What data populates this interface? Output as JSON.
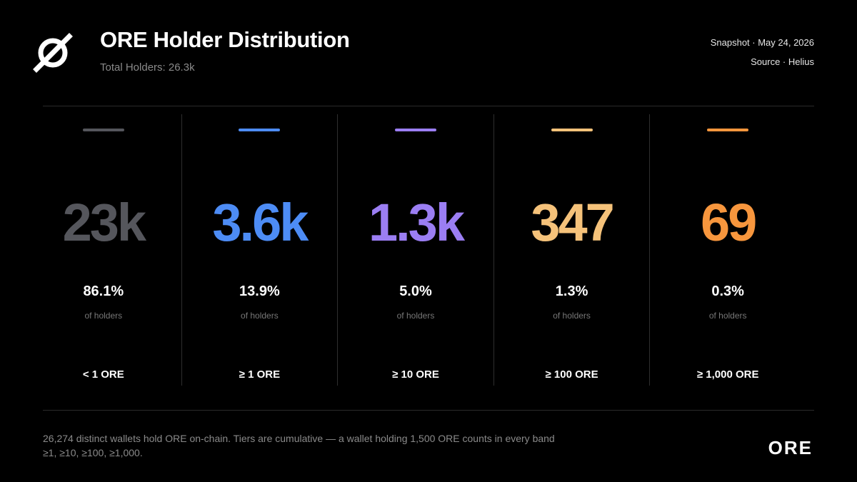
{
  "header": {
    "title": "ORE Holder Distribution",
    "subtitle": "Total Holders: 26.3k",
    "snapshot": "Snapshot · May 24, 2026",
    "source": "Source · Helius",
    "logo_icon": "ore-logo-icon"
  },
  "chart_data": {
    "type": "table",
    "title": "ORE Holder Distribution",
    "subtitle": "Total Holders: 26.3k",
    "tiers": [
      {
        "band": "< 1 ORE",
        "count_label": "23k",
        "pct_label": "86.1%",
        "pct": 86.1,
        "unit": "of holders",
        "color": "#55565c"
      },
      {
        "band": "≥ 1 ORE",
        "count_label": "3.6k",
        "pct_label": "13.9%",
        "pct": 13.9,
        "unit": "of holders",
        "color": "#4d8cf5"
      },
      {
        "band": "≥ 10 ORE",
        "count_label": "1.3k",
        "pct_label": "5.0%",
        "pct": 5.0,
        "unit": "of holders",
        "color": "#9b7ef3"
      },
      {
        "band": "≥ 100 ORE",
        "count_label": "347",
        "pct_label": "1.3%",
        "pct": 1.3,
        "unit": "of holders",
        "color": "#f5c27a"
      },
      {
        "band": "≥ 1,000 ORE",
        "count_label": "69",
        "pct_label": "0.3%",
        "pct": 0.3,
        "unit": "of holders",
        "color": "#f7963d"
      }
    ]
  },
  "footer": {
    "note": "26,274 distinct wallets hold ORE on-chain. Tiers are cumulative — a wallet holding 1,500 ORE counts in every band ≥1, ≥10, ≥100, ≥1,000.",
    "wordmark": "ORE"
  }
}
